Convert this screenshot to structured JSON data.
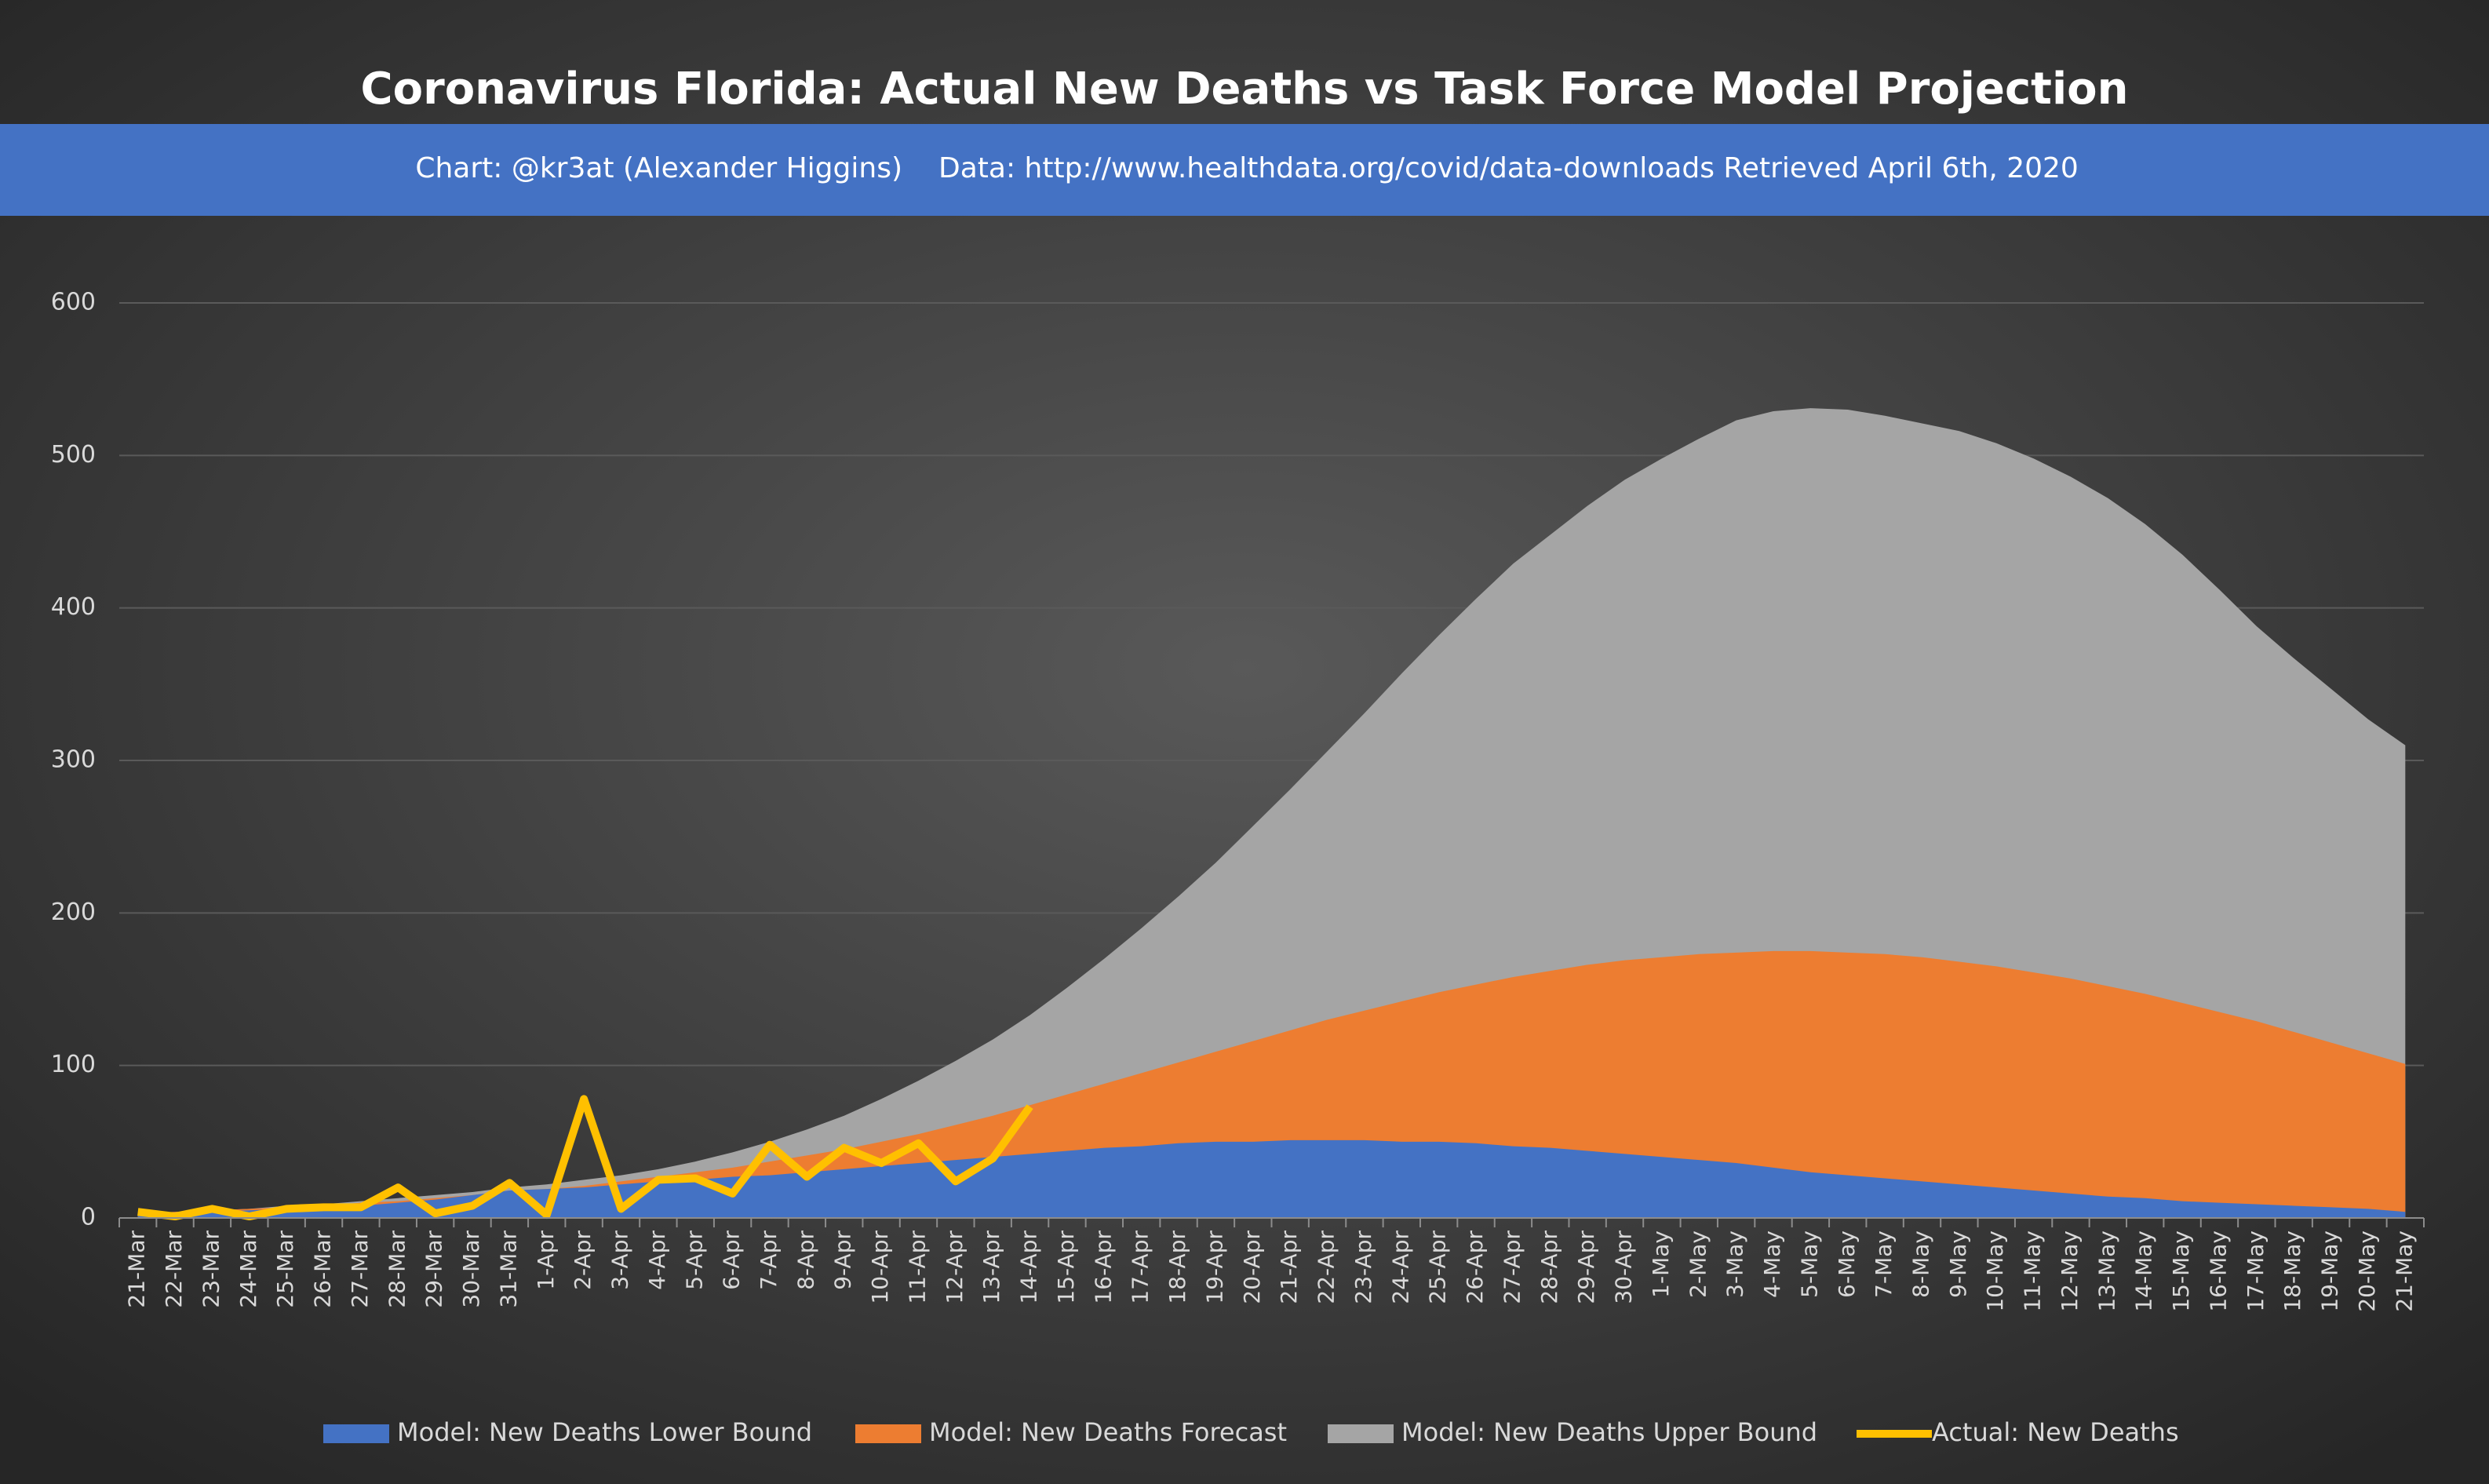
{
  "chart_data": {
    "type": "area",
    "title": "Coronavirus Florida: Actual New Deaths vs Task Force Model Projection",
    "credit": "Chart: @kr3at (Alexander Higgins)",
    "source": "Data: http://www.healthdata.org/covid/data-downloads Retrieved April 6th, 2020",
    "categories": [
      "21-Mar",
      "22-Mar",
      "23-Mar",
      "24-Mar",
      "25-Mar",
      "26-Mar",
      "27-Mar",
      "28-Mar",
      "29-Mar",
      "30-Mar",
      "31-Mar",
      "1-Apr",
      "2-Apr",
      "3-Apr",
      "4-Apr",
      "5-Apr",
      "6-Apr",
      "7-Apr",
      "8-Apr",
      "9-Apr",
      "10-Apr",
      "11-Apr",
      "12-Apr",
      "13-Apr",
      "14-Apr",
      "15-Apr",
      "16-Apr",
      "17-Apr",
      "18-Apr",
      "19-Apr",
      "20-Apr",
      "21-Apr",
      "22-Apr",
      "23-Apr",
      "24-Apr",
      "25-Apr",
      "26-Apr",
      "27-Apr",
      "28-Apr",
      "29-Apr",
      "30-Apr",
      "1-May",
      "2-May",
      "3-May",
      "4-May",
      "5-May",
      "6-May",
      "7-May",
      "8-May",
      "9-May",
      "10-May",
      "11-May",
      "12-May",
      "13-May",
      "14-May",
      "15-May",
      "16-May",
      "17-May",
      "18-May",
      "19-May",
      "20-May",
      "21-May"
    ],
    "series": [
      {
        "name": "Model: New Deaths Lower Bound",
        "color": "#4472c4",
        "kind": "area",
        "values": [
          2,
          3,
          4,
          5,
          6,
          7,
          8,
          10,
          12,
          15,
          18,
          19,
          20,
          22,
          24,
          25,
          27,
          28,
          30,
          32,
          34,
          36,
          38,
          40,
          42,
          44,
          46,
          47,
          49,
          50,
          50,
          51,
          51,
          51,
          50,
          50,
          49,
          47,
          46,
          44,
          42,
          40,
          38,
          36,
          33,
          30,
          28,
          26,
          24,
          22,
          20,
          18,
          16,
          14,
          13,
          11,
          10,
          9,
          8,
          7,
          6,
          4
        ]
      },
      {
        "name": "Model: New Deaths Forecast",
        "color": "#ed7d31",
        "kind": "area",
        "values": [
          3,
          4,
          5,
          6,
          7,
          8,
          10,
          11,
          13,
          15,
          18,
          19,
          21,
          24,
          27,
          30,
          33,
          37,
          41,
          45,
          50,
          55,
          61,
          67,
          74,
          81,
          88,
          95,
          102,
          109,
          116,
          123,
          130,
          136,
          142,
          148,
          153,
          158,
          162,
          166,
          169,
          171,
          173,
          174,
          175,
          175,
          174,
          173,
          171,
          168,
          165,
          161,
          157,
          152,
          147,
          141,
          135,
          129,
          122,
          115,
          108,
          101
        ]
      },
      {
        "name": "Model: New Deaths Upper Bound",
        "color": "#a5a5a5",
        "kind": "area",
        "values": [
          3,
          4,
          5,
          6,
          8,
          9,
          11,
          13,
          15,
          17,
          20,
          22,
          25,
          28,
          32,
          37,
          43,
          50,
          58,
          67,
          78,
          90,
          103,
          117,
          133,
          151,
          170,
          190,
          211,
          233,
          257,
          281,
          306,
          331,
          357,
          382,
          406,
          429,
          448,
          467,
          484,
          498,
          511,
          523,
          529,
          531,
          530,
          526,
          521,
          516,
          508,
          498,
          486,
          472,
          455,
          435,
          412,
          388,
          367,
          347,
          327,
          310
        ]
      },
      {
        "name": "Actual: New Deaths",
        "color": "#ffc000",
        "kind": "line",
        "values": [
          4,
          1,
          6,
          1,
          6,
          7,
          7,
          20,
          3,
          8,
          23,
          2,
          78,
          6,
          25,
          26,
          16,
          48,
          27,
          46,
          36,
          49,
          24,
          39,
          73,
          null,
          null,
          null,
          null,
          null,
          null,
          null,
          null,
          null,
          null,
          null,
          null,
          null,
          null,
          null,
          null,
          null,
          null,
          null,
          null,
          null,
          null,
          null,
          null,
          null,
          null,
          null,
          null,
          null,
          null,
          null,
          null,
          null,
          null,
          null,
          null,
          null
        ]
      }
    ],
    "ylim": [
      0,
      600
    ],
    "yticks": [
      0,
      100,
      200,
      300,
      400,
      500,
      600
    ],
    "grid": true,
    "legend": "bottom"
  }
}
